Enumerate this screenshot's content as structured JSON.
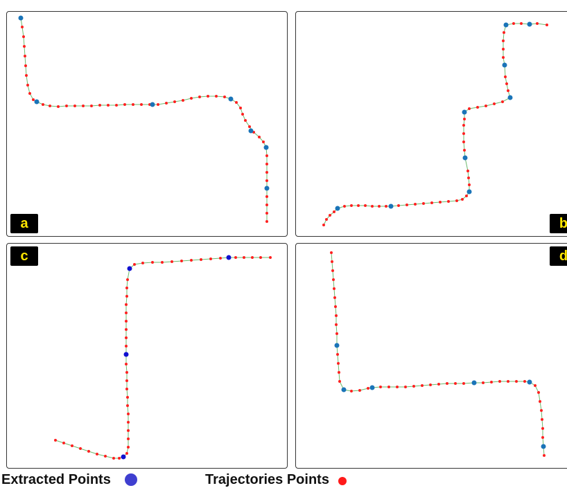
{
  "panels": [
    {
      "label": "a",
      "extracted": [
        [
          20,
          9
        ],
        [
          43,
          130
        ],
        [
          210,
          134
        ],
        [
          323,
          126
        ],
        [
          352,
          172
        ],
        [
          374,
          196
        ],
        [
          375,
          255
        ]
      ],
      "trajectory": [
        [
          20,
          9
        ],
        [
          22,
          22
        ],
        [
          24,
          36
        ],
        [
          25,
          50
        ],
        [
          26,
          64
        ],
        [
          27,
          78
        ],
        [
          28,
          92
        ],
        [
          30,
          106
        ],
        [
          33,
          118
        ],
        [
          38,
          127
        ],
        [
          43,
          130
        ],
        [
          52,
          134
        ],
        [
          62,
          136
        ],
        [
          74,
          137
        ],
        [
          86,
          136
        ],
        [
          98,
          136
        ],
        [
          110,
          136
        ],
        [
          122,
          136
        ],
        [
          134,
          135
        ],
        [
          146,
          135
        ],
        [
          158,
          135
        ],
        [
          170,
          134
        ],
        [
          182,
          134
        ],
        [
          194,
          134
        ],
        [
          206,
          134
        ],
        [
          218,
          134
        ],
        [
          230,
          132
        ],
        [
          242,
          130
        ],
        [
          254,
          128
        ],
        [
          266,
          125
        ],
        [
          278,
          123
        ],
        [
          290,
          122
        ],
        [
          302,
          122
        ],
        [
          314,
          123
        ],
        [
          323,
          126
        ],
        [
          331,
          131
        ],
        [
          337,
          139
        ],
        [
          340,
          148
        ],
        [
          344,
          157
        ],
        [
          350,
          166
        ],
        [
          356,
          174
        ],
        [
          364,
          181
        ],
        [
          370,
          188
        ],
        [
          374,
          196
        ],
        [
          375,
          208
        ],
        [
          375,
          220
        ],
        [
          375,
          232
        ],
        [
          375,
          244
        ],
        [
          375,
          255
        ],
        [
          375,
          267
        ],
        [
          375,
          279
        ],
        [
          375,
          291
        ],
        [
          375,
          303
        ]
      ]
    },
    {
      "label": "b",
      "extracted": [
        [
          303,
          19
        ],
        [
          337,
          18
        ],
        [
          301,
          77
        ],
        [
          309,
          124
        ],
        [
          243,
          145
        ],
        [
          244,
          211
        ],
        [
          250,
          260
        ],
        [
          60,
          284
        ],
        [
          137,
          281
        ]
      ],
      "trajectory": [
        [
          40,
          308
        ],
        [
          44,
          300
        ],
        [
          49,
          294
        ],
        [
          55,
          289
        ],
        [
          60,
          284
        ],
        [
          70,
          281
        ],
        [
          80,
          280
        ],
        [
          90,
          280
        ],
        [
          100,
          280
        ],
        [
          110,
          281
        ],
        [
          120,
          281
        ],
        [
          130,
          281
        ],
        [
          137,
          281
        ],
        [
          148,
          280
        ],
        [
          160,
          279
        ],
        [
          172,
          278
        ],
        [
          184,
          277
        ],
        [
          196,
          276
        ],
        [
          208,
          275
        ],
        [
          220,
          274
        ],
        [
          232,
          273
        ],
        [
          240,
          271
        ],
        [
          246,
          266
        ],
        [
          250,
          260
        ],
        [
          250,
          250
        ],
        [
          249,
          240
        ],
        [
          248,
          230
        ],
        [
          244,
          211
        ],
        [
          243,
          200
        ],
        [
          242,
          188
        ],
        [
          242,
          176
        ],
        [
          242,
          164
        ],
        [
          243,
          155
        ],
        [
          243,
          145
        ],
        [
          250,
          140
        ],
        [
          262,
          138
        ],
        [
          274,
          136
        ],
        [
          286,
          133
        ],
        [
          298,
          130
        ],
        [
          309,
          124
        ],
        [
          306,
          114
        ],
        [
          304,
          104
        ],
        [
          302,
          94
        ],
        [
          301,
          77
        ],
        [
          299,
          66
        ],
        [
          299,
          54
        ],
        [
          299,
          42
        ],
        [
          300,
          30
        ],
        [
          303,
          19
        ],
        [
          314,
          17
        ],
        [
          325,
          17
        ],
        [
          337,
          18
        ],
        [
          348,
          17
        ],
        [
          362,
          19
        ]
      ]
    },
    {
      "label": "c",
      "extracted": [
        [
          177,
          36
        ],
        [
          320,
          20
        ],
        [
          172,
          160
        ],
        [
          168,
          308
        ]
      ],
      "trajectory": [
        [
          70,
          284
        ],
        [
          82,
          288
        ],
        [
          94,
          292
        ],
        [
          106,
          296
        ],
        [
          118,
          300
        ],
        [
          130,
          304
        ],
        [
          142,
          307
        ],
        [
          154,
          310
        ],
        [
          162,
          310
        ],
        [
          168,
          308
        ],
        [
          173,
          303
        ],
        [
          175,
          294
        ],
        [
          175,
          282
        ],
        [
          175,
          270
        ],
        [
          175,
          258
        ],
        [
          175,
          246
        ],
        [
          174,
          234
        ],
        [
          174,
          222
        ],
        [
          173,
          210
        ],
        [
          173,
          198
        ],
        [
          173,
          186
        ],
        [
          172,
          174
        ],
        [
          172,
          160
        ],
        [
          172,
          148
        ],
        [
          172,
          136
        ],
        [
          172,
          124
        ],
        [
          172,
          112
        ],
        [
          172,
          100
        ],
        [
          172,
          88
        ],
        [
          173,
          76
        ],
        [
          173,
          64
        ],
        [
          174,
          52
        ],
        [
          177,
          36
        ],
        [
          184,
          30
        ],
        [
          196,
          28
        ],
        [
          210,
          27
        ],
        [
          224,
          27
        ],
        [
          238,
          26
        ],
        [
          252,
          25
        ],
        [
          266,
          24
        ],
        [
          280,
          23
        ],
        [
          294,
          22
        ],
        [
          308,
          21
        ],
        [
          320,
          20
        ],
        [
          330,
          20
        ],
        [
          342,
          20
        ],
        [
          354,
          20
        ],
        [
          366,
          20
        ],
        [
          380,
          20
        ]
      ]
    },
    {
      "label": "d",
      "extracted": [
        [
          59,
          147
        ],
        [
          69,
          211
        ],
        [
          110,
          208
        ],
        [
          257,
          201
        ],
        [
          337,
          200
        ],
        [
          357,
          293
        ]
      ],
      "trajectory": [
        [
          51,
          13
        ],
        [
          52,
          26
        ],
        [
          53,
          39
        ],
        [
          54,
          52
        ],
        [
          55,
          65
        ],
        [
          56,
          78
        ],
        [
          57,
          91
        ],
        [
          58,
          104
        ],
        [
          58,
          117
        ],
        [
          59,
          130
        ],
        [
          59,
          147
        ],
        [
          60,
          160
        ],
        [
          61,
          173
        ],
        [
          62,
          186
        ],
        [
          63,
          199
        ],
        [
          69,
          211
        ],
        [
          80,
          213
        ],
        [
          92,
          212
        ],
        [
          104,
          209
        ],
        [
          110,
          208
        ],
        [
          122,
          207
        ],
        [
          134,
          207
        ],
        [
          146,
          207
        ],
        [
          158,
          207
        ],
        [
          170,
          206
        ],
        [
          182,
          205
        ],
        [
          194,
          204
        ],
        [
          206,
          203
        ],
        [
          218,
          202
        ],
        [
          230,
          202
        ],
        [
          242,
          202
        ],
        [
          257,
          201
        ],
        [
          270,
          201
        ],
        [
          282,
          200
        ],
        [
          294,
          199
        ],
        [
          306,
          199
        ],
        [
          318,
          199
        ],
        [
          330,
          199
        ],
        [
          337,
          200
        ],
        [
          345,
          205
        ],
        [
          350,
          215
        ],
        [
          352,
          228
        ],
        [
          354,
          241
        ],
        [
          355,
          254
        ],
        [
          356,
          267
        ],
        [
          356,
          280
        ],
        [
          357,
          293
        ],
        [
          358,
          306
        ]
      ]
    }
  ],
  "legend": {
    "extracted_label": "Extracted Points",
    "trajectories_label": "Trajectories Points"
  },
  "colors": {
    "extracted_abd": "#1a74b8",
    "extracted_c": "#1010d0",
    "trajectory": "#ff2020",
    "line": "#6db96d",
    "legend_extracted": "#3f3fd0",
    "legend_trajectory": "#ff1a1a"
  }
}
